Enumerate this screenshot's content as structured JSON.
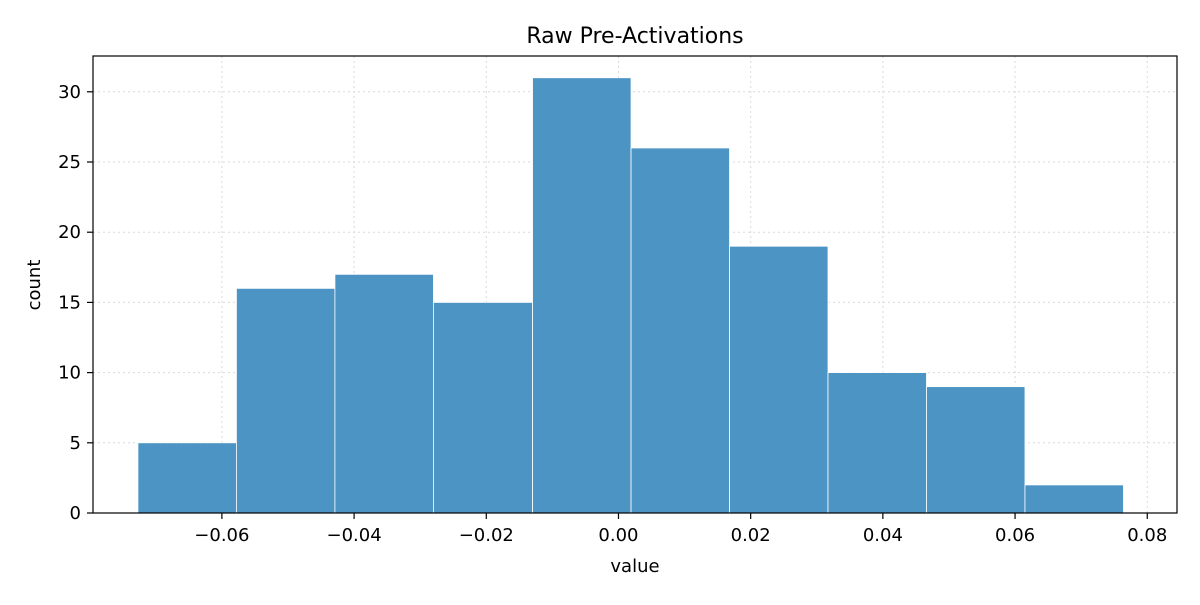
{
  "chart_data": {
    "type": "bar",
    "title": "Raw Pre-Activations",
    "xlabel": "value",
    "ylabel": "count",
    "xlim": [
      -0.0795,
      0.0845
    ],
    "ylim": [
      0,
      32.55
    ],
    "xticks": [
      -0.06,
      -0.04,
      -0.02,
      0.0,
      0.02,
      0.04,
      0.06,
      0.08
    ],
    "xtick_labels": [
      "−0.06",
      "−0.04",
      "−0.02",
      "0.00",
      "0.02",
      "0.04",
      "0.06",
      "0.08"
    ],
    "yticks": [
      0,
      5,
      10,
      15,
      20,
      25,
      30
    ],
    "ytick_labels": [
      "0",
      "5",
      "10",
      "15",
      "20",
      "25",
      "30"
    ],
    "grid": true,
    "bar_color": "#4c94c4",
    "bins": [
      {
        "x0": -0.0727,
        "x1": -0.0578,
        "count": 5
      },
      {
        "x0": -0.0578,
        "x1": -0.0429,
        "count": 16
      },
      {
        "x0": -0.0429,
        "x1": -0.028,
        "count": 17
      },
      {
        "x0": -0.028,
        "x1": -0.013,
        "count": 15
      },
      {
        "x0": -0.013,
        "x1": 0.0019,
        "count": 31
      },
      {
        "x0": 0.0019,
        "x1": 0.0168,
        "count": 26
      },
      {
        "x0": 0.0168,
        "x1": 0.0317,
        "count": 19
      },
      {
        "x0": 0.0317,
        "x1": 0.0466,
        "count": 10
      },
      {
        "x0": 0.0466,
        "x1": 0.0615,
        "count": 9
      },
      {
        "x0": 0.0615,
        "x1": 0.0764,
        "count": 2
      }
    ]
  }
}
